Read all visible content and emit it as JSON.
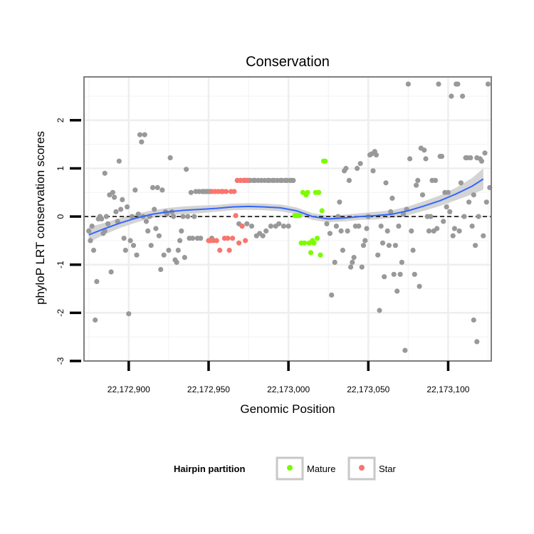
{
  "chart_data": {
    "type": "scatter",
    "title": "Conservation",
    "xlabel": "Genomic Position",
    "ylabel": "phyloP LRT conservation scores",
    "xlim": [
      22172872,
      22173127
    ],
    "ylim": [
      -3,
      2.9
    ],
    "x_ticks": [
      22172900,
      22172950,
      22173000,
      22173050,
      22173100
    ],
    "x_tick_labels": [
      "22,172,900",
      "22,172,950",
      "22,173,000",
      "22,173,050",
      "22,173,100"
    ],
    "y_ticks": [
      -3,
      -2,
      -1,
      0,
      1,
      2
    ],
    "y_tick_labels": [
      "-3",
      "-2",
      "-1",
      "0",
      "1",
      "2"
    ],
    "reference_line_y": 0,
    "grid": true,
    "legend": {
      "title": "Hairpin partition",
      "position": "bottom",
      "entries": [
        {
          "label": "Mature",
          "color": "#7cfc00"
        },
        {
          "label": "Star",
          "color": "#f8766d"
        }
      ]
    },
    "colors": {
      "other": "#999999",
      "Mature": "#7cfc00",
      "Star": "#f8766d",
      "smooth": "#3366ff",
      "band": "#cccccc"
    },
    "series": [
      {
        "name": "Other",
        "points": [
          [
            22172875,
            -0.3
          ],
          [
            22172876,
            -0.5
          ],
          [
            22172877,
            -0.2
          ],
          [
            22172878,
            -0.7
          ],
          [
            22172879,
            -2.15
          ],
          [
            22172880,
            -1.35
          ],
          [
            22172881,
            -0.05
          ],
          [
            22172882,
            0.0
          ],
          [
            22172883,
            -0.05
          ],
          [
            22172884,
            -0.35
          ],
          [
            22172885,
            -0.3
          ],
          [
            22172885,
            0.9
          ],
          [
            22172886,
            0.0
          ],
          [
            22172887,
            -0.15
          ],
          [
            22172888,
            0.45
          ],
          [
            22172889,
            -1.15
          ],
          [
            22172890,
            0.5
          ],
          [
            22172891,
            0.4
          ],
          [
            22172892,
            0.1
          ],
          [
            22172893,
            -0.1
          ],
          [
            22172894,
            1.15
          ],
          [
            22172895,
            0.15
          ],
          [
            22172896,
            0.35
          ],
          [
            22172897,
            -0.45
          ],
          [
            22172898,
            -0.7
          ],
          [
            22172899,
            0.2
          ],
          [
            22172900,
            -2.02
          ],
          [
            22172901,
            -0.5
          ],
          [
            22172902,
            0.0
          ],
          [
            22172903,
            -0.6
          ],
          [
            22172904,
            0.55
          ],
          [
            22172905,
            -0.8
          ],
          [
            22172906,
            0.05
          ],
          [
            22172907,
            1.7
          ],
          [
            22172908,
            1.55
          ],
          [
            22172909,
            0.0
          ],
          [
            22172910,
            1.7
          ],
          [
            22172911,
            -0.1
          ],
          [
            22172912,
            -0.3
          ],
          [
            22172913,
            0.0
          ],
          [
            22172914,
            -0.6
          ],
          [
            22172915,
            0.6
          ],
          [
            22172916,
            0.15
          ],
          [
            22172917,
            -0.25
          ],
          [
            22172918,
            0.6
          ],
          [
            22172919,
            -0.4
          ],
          [
            22172920,
            -1.1
          ],
          [
            22172921,
            0.55
          ],
          [
            22172922,
            -0.8
          ],
          [
            22172923,
            0.1
          ],
          [
            22172924,
            0.05
          ],
          [
            22172925,
            -0.7
          ],
          [
            22172926,
            1.22
          ],
          [
            22172927,
            0.1
          ],
          [
            22172928,
            0.0
          ],
          [
            22172929,
            -0.9
          ],
          [
            22172930,
            -0.95
          ],
          [
            22172931,
            -0.7
          ],
          [
            22172932,
            -0.5
          ],
          [
            22172933,
            -0.3
          ],
          [
            22172934,
            0.0
          ],
          [
            22172935,
            -0.85
          ],
          [
            22172936,
            0.98
          ],
          [
            22172937,
            0.0
          ],
          [
            22172938,
            -0.45
          ],
          [
            22172939,
            0.5
          ],
          [
            22172940,
            -0.45
          ],
          [
            22172941,
            0.0
          ],
          [
            22172942,
            0.52
          ],
          [
            22172943,
            -0.45
          ],
          [
            22172944,
            0.52
          ],
          [
            22172945,
            -0.45
          ],
          [
            22172946,
            0.52
          ],
          [
            22172947,
            0.52
          ],
          [
            22172948,
            0.52
          ],
          [
            22172949,
            0.52
          ],
          [
            22172950,
            0.52
          ],
          [
            22172951,
            0.52
          ],
          [
            22172952,
            -0.45
          ],
          [
            22172968,
            0.75
          ],
          [
            22172969,
            -0.15
          ],
          [
            22172970,
            0.75
          ],
          [
            22172971,
            -0.2
          ],
          [
            22172972,
            0.75
          ],
          [
            22172973,
            0.75
          ],
          [
            22172974,
            -0.15
          ],
          [
            22172975,
            0.75
          ],
          [
            22172976,
            0.75
          ],
          [
            22172977,
            -0.2
          ],
          [
            22172978,
            0.75
          ],
          [
            22172979,
            0.75
          ],
          [
            22172980,
            -0.4
          ],
          [
            22172981,
            0.75
          ],
          [
            22172982,
            -0.35
          ],
          [
            22172983,
            0.75
          ],
          [
            22172984,
            -0.4
          ],
          [
            22172985,
            0.75
          ],
          [
            22172986,
            -0.3
          ],
          [
            22172987,
            0.75
          ],
          [
            22172988,
            0.75
          ],
          [
            22172989,
            -0.2
          ],
          [
            22172990,
            0.75
          ],
          [
            22172991,
            0.75
          ],
          [
            22172992,
            -0.2
          ],
          [
            22172993,
            0.75
          ],
          [
            22172994,
            -0.15
          ],
          [
            22172995,
            0.75
          ],
          [
            22172996,
            0.75
          ],
          [
            22172997,
            -0.2
          ],
          [
            22172998,
            0.75
          ],
          [
            22172999,
            0.75
          ],
          [
            22173000,
            -0.2
          ],
          [
            22173001,
            0.75
          ],
          [
            22173002,
            0.75
          ],
          [
            22173003,
            0.75
          ],
          [
            22173024,
            -0.15
          ],
          [
            22173026,
            -0.35
          ],
          [
            22173027,
            -1.63
          ],
          [
            22173029,
            -0.95
          ],
          [
            22173030,
            -0.2
          ],
          [
            22173031,
            0.0
          ],
          [
            22173032,
            0.3
          ],
          [
            22173033,
            -0.3
          ],
          [
            22173034,
            -0.7
          ],
          [
            22173035,
            0.95
          ],
          [
            22173036,
            1.0
          ],
          [
            22173037,
            -0.3
          ],
          [
            22173038,
            0.75
          ],
          [
            22173039,
            -1.05
          ],
          [
            22173040,
            -0.95
          ],
          [
            22173041,
            -0.85
          ],
          [
            22173042,
            -0.2
          ],
          [
            22173043,
            1.0
          ],
          [
            22173044,
            -0.2
          ],
          [
            22173045,
            1.1
          ],
          [
            22173046,
            -1.05
          ],
          [
            22173047,
            -0.6
          ],
          [
            22173048,
            -0.5
          ],
          [
            22173049,
            -0.25
          ],
          [
            22173050,
            0.0
          ],
          [
            22173051,
            1.28
          ],
          [
            22173052,
            1.3
          ],
          [
            22173053,
            0.95
          ],
          [
            22173054,
            1.35
          ],
          [
            22173055,
            1.28
          ],
          [
            22173056,
            -0.8
          ],
          [
            22173057,
            -1.95
          ],
          [
            22173058,
            -0.2
          ],
          [
            22173059,
            -0.55
          ],
          [
            22173060,
            -1.25
          ],
          [
            22173061,
            0.7
          ],
          [
            22173062,
            -0.3
          ],
          [
            22173063,
            -0.6
          ],
          [
            22173064,
            0.1
          ],
          [
            22173065,
            0.38
          ],
          [
            22173066,
            -1.2
          ],
          [
            22173067,
            -0.6
          ],
          [
            22173068,
            -1.55
          ],
          [
            22173069,
            -0.2
          ],
          [
            22173070,
            -1.2
          ],
          [
            22173071,
            -0.95
          ],
          [
            22173072,
            0.05
          ],
          [
            22173073,
            -2.78
          ],
          [
            22173074,
            0.15
          ],
          [
            22173075,
            2.75
          ],
          [
            22173076,
            1.2
          ],
          [
            22173077,
            -0.3
          ],
          [
            22173078,
            -0.7
          ],
          [
            22173079,
            -1.2
          ],
          [
            22173080,
            0.65
          ],
          [
            22173081,
            0.75
          ],
          [
            22173082,
            -1.45
          ],
          [
            22173083,
            1.42
          ],
          [
            22173084,
            0.45
          ],
          [
            22173085,
            1.38
          ],
          [
            22173086,
            1.2
          ],
          [
            22173087,
            0.0
          ],
          [
            22173088,
            -0.3
          ],
          [
            22173089,
            0.0
          ],
          [
            22173090,
            0.75
          ],
          [
            22173091,
            -0.3
          ],
          [
            22173092,
            0.75
          ],
          [
            22173093,
            -0.25
          ],
          [
            22173094,
            2.75
          ],
          [
            22173095,
            1.25
          ],
          [
            22173096,
            1.25
          ],
          [
            22173097,
            -0.1
          ],
          [
            22173098,
            0.5
          ],
          [
            22173099,
            0.2
          ],
          [
            22173100,
            0.5
          ],
          [
            22173101,
            0.1
          ],
          [
            22173102,
            2.5
          ],
          [
            22173103,
            -0.4
          ],
          [
            22173104,
            -0.25
          ],
          [
            22173105,
            2.75
          ],
          [
            22173106,
            2.75
          ],
          [
            22173107,
            -0.3
          ],
          [
            22173108,
            0.7
          ],
          [
            22173109,
            2.5
          ],
          [
            22173110,
            0.0
          ],
          [
            22173111,
            1.22
          ],
          [
            22173112,
            1.22
          ],
          [
            22173113,
            0.3
          ],
          [
            22173114,
            1.22
          ],
          [
            22173115,
            -0.2
          ],
          [
            22173116,
            0.45
          ],
          [
            22173117,
            -0.6
          ],
          [
            22173118,
            1.22
          ],
          [
            22173119,
            0.0
          ],
          [
            22173120,
            1.2
          ],
          [
            22173121,
            1.15
          ],
          [
            22173122,
            -0.4
          ],
          [
            22173123,
            1.32
          ],
          [
            22173124,
            0.3
          ],
          [
            22173125,
            2.75
          ],
          [
            22173126,
            0.6
          ],
          [
            22173116,
            -2.15
          ],
          [
            22173118,
            -2.6
          ]
        ]
      },
      {
        "name": "Star",
        "points": [
          [
            22172950,
            -0.5
          ],
          [
            22172951,
            -0.5
          ],
          [
            22172952,
            0.52
          ],
          [
            22172953,
            -0.5
          ],
          [
            22172954,
            0.52
          ],
          [
            22172955,
            -0.5
          ],
          [
            22172956,
            0.52
          ],
          [
            22172957,
            -0.7
          ],
          [
            22172958,
            0.52
          ],
          [
            22172959,
            0.52
          ],
          [
            22172960,
            -0.45
          ],
          [
            22172961,
            0.52
          ],
          [
            22172962,
            -0.45
          ],
          [
            22172963,
            -0.7
          ],
          [
            22172964,
            0.52
          ],
          [
            22172965,
            -0.45
          ],
          [
            22172966,
            0.52
          ],
          [
            22172967,
            0.02
          ],
          [
            22172968,
            0.75
          ],
          [
            22172969,
            -0.55
          ],
          [
            22172970,
            0.75
          ],
          [
            22172971,
            -0.2
          ],
          [
            22172972,
            0.75
          ],
          [
            22172973,
            -0.5
          ],
          [
            22172974,
            0.75
          ]
        ]
      },
      {
        "name": "Mature",
        "points": [
          [
            22173004,
            0.02
          ],
          [
            22173005,
            0.02
          ],
          [
            22173006,
            0.02
          ],
          [
            22173007,
            0.02
          ],
          [
            22173008,
            -0.55
          ],
          [
            22173009,
            0.5
          ],
          [
            22173010,
            -0.55
          ],
          [
            22173011,
            0.45
          ],
          [
            22173012,
            0.5
          ],
          [
            22173013,
            -0.55
          ],
          [
            22173014,
            -0.75
          ],
          [
            22173015,
            -0.5
          ],
          [
            22173016,
            -0.55
          ],
          [
            22173017,
            0.5
          ],
          [
            22173018,
            -0.45
          ],
          [
            22173019,
            0.5
          ],
          [
            22173020,
            -0.8
          ],
          [
            22173021,
            0.12
          ],
          [
            22173022,
            1.15
          ],
          [
            22173023,
            1.15
          ]
        ]
      }
    ],
    "smooth": {
      "x": [
        22172875,
        22172885,
        22172895,
        22172905,
        22172915,
        22172925,
        22172935,
        22172945,
        22172955,
        22172965,
        22172975,
        22172985,
        22172995,
        22173005,
        22173015,
        22173025,
        22173035,
        22173045,
        22173055,
        22173065,
        22173075,
        22173085,
        22173095,
        22173105,
        22173115,
        22173122
      ],
      "y": [
        -0.38,
        -0.25,
        -0.13,
        -0.03,
        0.05,
        0.1,
        0.13,
        0.15,
        0.17,
        0.2,
        0.21,
        0.2,
        0.18,
        0.12,
        0.0,
        -0.05,
        -0.03,
        0.0,
        0.02,
        0.05,
        0.12,
        0.22,
        0.33,
        0.47,
        0.63,
        0.78
      ],
      "se": [
        0.16,
        0.12,
        0.1,
        0.09,
        0.08,
        0.08,
        0.08,
        0.08,
        0.07,
        0.07,
        0.07,
        0.07,
        0.07,
        0.07,
        0.07,
        0.07,
        0.07,
        0.07,
        0.08,
        0.08,
        0.09,
        0.1,
        0.11,
        0.13,
        0.17,
        0.22
      ]
    }
  }
}
